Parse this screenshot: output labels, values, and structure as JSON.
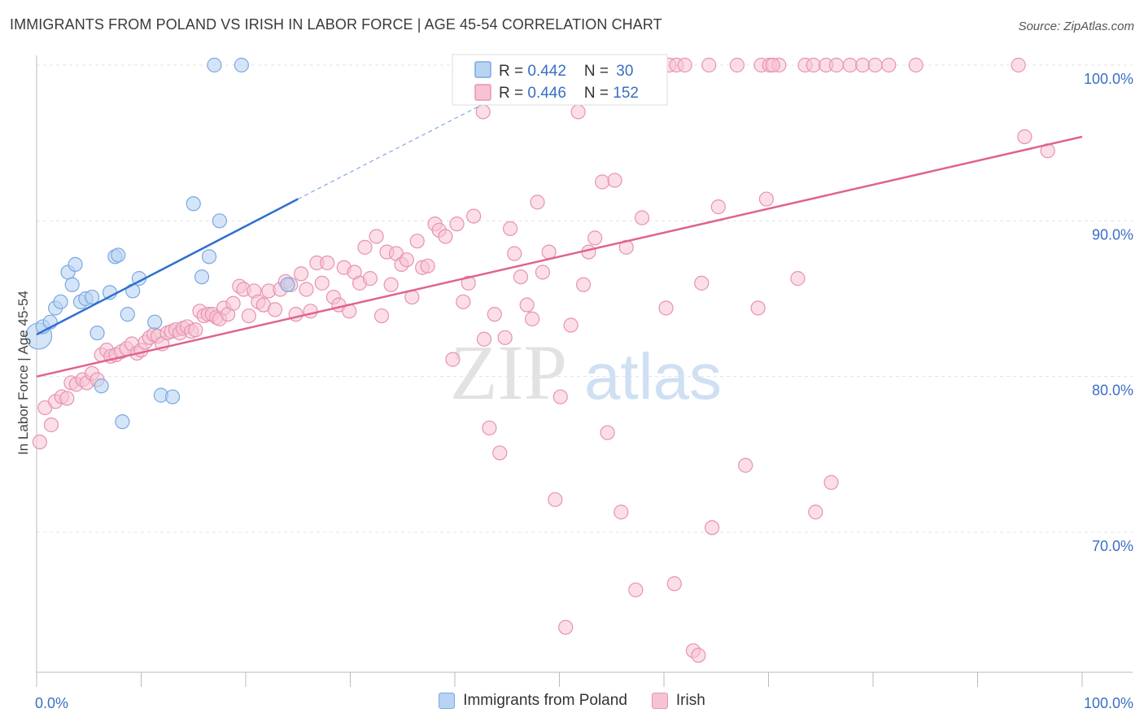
{
  "header": {
    "title": "IMMIGRANTS FROM POLAND VS IRISH IN LABOR FORCE | AGE 45-54 CORRELATION CHART",
    "source": "Source: ZipAtlas.com"
  },
  "watermark": {
    "part1": "ZIP",
    "part2": "atlas"
  },
  "legend_box": {
    "rows": [
      {
        "r_label": "R = ",
        "r_value": "0.442",
        "n_label": "N = ",
        "n_value": "30"
      },
      {
        "r_label": "R = ",
        "r_value": "0.446",
        "n_label": "N = ",
        "n_value": "152"
      }
    ]
  },
  "chart_data": {
    "type": "scatter",
    "title": "IMMIGRANTS FROM POLAND VS IRISH IN LABOR FORCE | AGE 45-54 CORRELATION CHART",
    "xlabel": "",
    "ylabel": "In Labor Force | Age 45-54",
    "xlim": [
      0,
      100
    ],
    "ylim": [
      60.5,
      102
    ],
    "x_tick_labels": [
      {
        "value": 0,
        "label": "0.0%"
      },
      {
        "value": 100,
        "label": "100.0%"
      }
    ],
    "x_minor_ticks": [
      0,
      10,
      20,
      30,
      40,
      50,
      60,
      70,
      80,
      90,
      100
    ],
    "y_ticks": [
      {
        "value": 100,
        "label": "100.0%"
      },
      {
        "value": 90,
        "label": "90.0%"
      },
      {
        "value": 80,
        "label": "80.0%"
      },
      {
        "value": 70,
        "label": "70.0%"
      }
    ],
    "grid": true,
    "legend_position": "top-center",
    "colors": {
      "poland_fill": "#b9d3f3",
      "poland_stroke": "#7aa8e0",
      "poland_line": "#2f6fcf",
      "irish_fill": "#f7c3d3",
      "irish_stroke": "#e793b0",
      "irish_line": "#e0628f"
    },
    "series": [
      {
        "name": "Immigrants from Poland",
        "r": 0.442,
        "n": 30,
        "trend": {
          "x0": 0,
          "y0": 82.7,
          "x1": 25,
          "y1": 91.4,
          "dash_x1": 43,
          "dash_y1": 97.6
        },
        "points": [
          [
            0.2,
            82.6
          ],
          [
            0.6,
            83.2
          ],
          [
            1.3,
            83.5
          ],
          [
            1.8,
            84.4
          ],
          [
            2.3,
            84.8
          ],
          [
            3.0,
            86.7
          ],
          [
            3.4,
            85.9
          ],
          [
            3.7,
            87.2
          ],
          [
            4.2,
            84.8
          ],
          [
            4.7,
            85.0
          ],
          [
            5.3,
            85.1
          ],
          [
            5.8,
            82.8
          ],
          [
            6.2,
            79.4
          ],
          [
            7.0,
            85.4
          ],
          [
            7.5,
            87.7
          ],
          [
            7.8,
            87.8
          ],
          [
            8.2,
            77.1
          ],
          [
            8.7,
            84.0
          ],
          [
            9.2,
            85.5
          ],
          [
            9.8,
            86.3
          ],
          [
            11.3,
            83.5
          ],
          [
            11.9,
            78.8
          ],
          [
            13.0,
            78.7
          ],
          [
            15.0,
            91.1
          ],
          [
            15.8,
            86.4
          ],
          [
            16.5,
            87.7
          ],
          [
            17.0,
            100.0
          ],
          [
            17.5,
            90.0
          ],
          [
            19.6,
            100.0
          ],
          [
            24.0,
            85.9
          ]
        ]
      },
      {
        "name": "Irish",
        "r": 0.446,
        "n": 152,
        "trend": {
          "x0": 0,
          "y0": 80.0,
          "x1": 100,
          "y1": 95.4
        },
        "points": [
          [
            0.3,
            75.8
          ],
          [
            0.8,
            78.0
          ],
          [
            1.4,
            76.9
          ],
          [
            1.8,
            78.4
          ],
          [
            2.4,
            78.7
          ],
          [
            2.9,
            78.6
          ],
          [
            3.3,
            79.6
          ],
          [
            3.8,
            79.5
          ],
          [
            4.4,
            79.8
          ],
          [
            4.8,
            79.6
          ],
          [
            5.3,
            80.2
          ],
          [
            5.8,
            79.8
          ],
          [
            6.2,
            81.4
          ],
          [
            6.7,
            81.7
          ],
          [
            7.1,
            81.3
          ],
          [
            7.6,
            81.4
          ],
          [
            8.1,
            81.6
          ],
          [
            8.6,
            81.8
          ],
          [
            9.1,
            82.1
          ],
          [
            9.6,
            81.5
          ],
          [
            10.0,
            81.7
          ],
          [
            10.4,
            82.2
          ],
          [
            10.8,
            82.5
          ],
          [
            11.2,
            82.7
          ],
          [
            11.6,
            82.6
          ],
          [
            12.0,
            82.1
          ],
          [
            12.5,
            82.8
          ],
          [
            12.9,
            82.9
          ],
          [
            13.3,
            83.0
          ],
          [
            13.7,
            82.8
          ],
          [
            14.0,
            83.1
          ],
          [
            14.4,
            83.2
          ],
          [
            14.8,
            82.9
          ],
          [
            15.2,
            83.0
          ],
          [
            15.6,
            84.2
          ],
          [
            16.0,
            83.9
          ],
          [
            16.4,
            84.0
          ],
          [
            16.8,
            84.0
          ],
          [
            17.2,
            83.8
          ],
          [
            17.5,
            83.7
          ],
          [
            17.9,
            84.4
          ],
          [
            18.3,
            84.0
          ],
          [
            18.8,
            84.7
          ],
          [
            19.4,
            85.8
          ],
          [
            19.8,
            85.6
          ],
          [
            20.3,
            83.9
          ],
          [
            20.8,
            85.5
          ],
          [
            21.2,
            84.8
          ],
          [
            21.7,
            84.6
          ],
          [
            22.2,
            85.5
          ],
          [
            22.8,
            84.3
          ],
          [
            23.3,
            85.6
          ],
          [
            23.8,
            86.1
          ],
          [
            24.3,
            85.9
          ],
          [
            24.8,
            84.0
          ],
          [
            25.3,
            86.6
          ],
          [
            25.8,
            85.6
          ],
          [
            26.2,
            84.2
          ],
          [
            26.8,
            87.3
          ],
          [
            27.3,
            86.0
          ],
          [
            27.8,
            87.3
          ],
          [
            28.4,
            85.1
          ],
          [
            28.9,
            84.6
          ],
          [
            29.4,
            87.0
          ],
          [
            29.9,
            84.2
          ],
          [
            30.4,
            86.7
          ],
          [
            30.9,
            86.0
          ],
          [
            31.4,
            88.3
          ],
          [
            31.9,
            86.3
          ],
          [
            32.5,
            89.0
          ],
          [
            33.0,
            83.9
          ],
          [
            33.5,
            88.0
          ],
          [
            33.9,
            85.9
          ],
          [
            34.4,
            87.9
          ],
          [
            34.9,
            87.2
          ],
          [
            35.4,
            87.5
          ],
          [
            35.9,
            85.1
          ],
          [
            36.4,
            88.7
          ],
          [
            36.9,
            87.0
          ],
          [
            37.4,
            87.1
          ],
          [
            38.1,
            89.8
          ],
          [
            38.5,
            89.4
          ],
          [
            39.1,
            89.0
          ],
          [
            39.8,
            81.1
          ],
          [
            40.2,
            89.8
          ],
          [
            40.8,
            84.8
          ],
          [
            41.3,
            86.0
          ],
          [
            41.8,
            90.3
          ],
          [
            42.8,
            82.4
          ],
          [
            43.3,
            76.7
          ],
          [
            43.8,
            84.0
          ],
          [
            44.3,
            75.1
          ],
          [
            44.8,
            82.5
          ],
          [
            45.3,
            89.5
          ],
          [
            45.7,
            87.9
          ],
          [
            46.3,
            86.4
          ],
          [
            46.9,
            84.6
          ],
          [
            47.4,
            83.7
          ],
          [
            47.9,
            91.2
          ],
          [
            48.4,
            86.7
          ],
          [
            49.0,
            88.0
          ],
          [
            49.6,
            72.1
          ],
          [
            50.1,
            78.7
          ],
          [
            50.6,
            63.9
          ],
          [
            51.1,
            83.3
          ],
          [
            51.8,
            97.0
          ],
          [
            52.3,
            85.9
          ],
          [
            52.8,
            88.0
          ],
          [
            53.4,
            88.9
          ],
          [
            54.1,
            92.5
          ],
          [
            54.6,
            76.4
          ],
          [
            55.3,
            92.6
          ],
          [
            55.9,
            71.3
          ],
          [
            56.4,
            88.3
          ],
          [
            57.3,
            66.3
          ],
          [
            57.9,
            90.2
          ],
          [
            60.2,
            84.4
          ],
          [
            61.0,
            66.7
          ],
          [
            62.8,
            62.4
          ],
          [
            63.3,
            62.1
          ],
          [
            63.6,
            86.0
          ],
          [
            64.6,
            70.3
          ],
          [
            65.2,
            90.9
          ],
          [
            67.8,
            74.3
          ],
          [
            69.0,
            84.4
          ],
          [
            69.8,
            91.4
          ],
          [
            72.8,
            86.3
          ],
          [
            74.5,
            71.3
          ],
          [
            76.0,
            73.2
          ],
          [
            42.7,
            97.0
          ],
          [
            59.5,
            98.9
          ],
          [
            60.5,
            100.0
          ],
          [
            61.2,
            100.0
          ],
          [
            62.0,
            100.0
          ],
          [
            64.3,
            100.0
          ],
          [
            67.0,
            100.0
          ],
          [
            69.3,
            100.0
          ],
          [
            70.1,
            100.0
          ],
          [
            71.0,
            100.0
          ],
          [
            73.5,
            100.0
          ],
          [
            74.3,
            100.0
          ],
          [
            75.5,
            100.0
          ],
          [
            76.5,
            100.0
          ],
          [
            77.8,
            100.0
          ],
          [
            79.0,
            100.0
          ],
          [
            80.2,
            100.0
          ],
          [
            81.5,
            100.0
          ],
          [
            84.1,
            100.0
          ],
          [
            93.9,
            100.0
          ],
          [
            94.5,
            95.4
          ],
          [
            96.7,
            94.5
          ],
          [
            70.4,
            100.0
          ]
        ]
      }
    ]
  },
  "bottom_legend": {
    "items": [
      {
        "label": "Immigrants from Poland"
      },
      {
        "label": "Irish"
      }
    ]
  }
}
